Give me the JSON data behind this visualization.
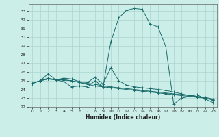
{
  "xlabel": "Humidex (Indice chaleur)",
  "background_color": "#cceee8",
  "grid_color": "#aad4ce",
  "line_color": "#1a6b6b",
  "xlim": [
    -0.5,
    23.5
  ],
  "ylim": [
    22,
    33.8
  ],
  "yticks": [
    22,
    23,
    24,
    25,
    26,
    27,
    28,
    29,
    30,
    31,
    32,
    33
  ],
  "xticks": [
    0,
    1,
    2,
    3,
    4,
    5,
    6,
    7,
    8,
    9,
    10,
    11,
    12,
    13,
    14,
    15,
    16,
    17,
    18,
    19,
    20,
    21,
    22,
    23
  ],
  "series": [
    [
      24.7,
      25.0,
      25.8,
      25.1,
      24.9,
      24.3,
      24.4,
      24.3,
      25.0,
      24.3,
      29.5,
      32.2,
      33.1,
      33.3,
      33.2,
      31.5,
      31.2,
      28.9,
      22.3,
      23.0,
      23.2,
      23.4,
      22.9,
      22.5
    ],
    [
      24.7,
      25.0,
      25.3,
      25.1,
      25.3,
      25.2,
      24.9,
      24.8,
      25.4,
      24.6,
      26.5,
      25.0,
      24.5,
      24.3,
      24.2,
      24.1,
      24.0,
      23.9,
      23.7,
      23.5,
      23.3,
      23.2,
      23.0,
      22.8
    ],
    [
      24.7,
      25.0,
      25.2,
      25.1,
      25.1,
      25.0,
      24.8,
      24.6,
      24.4,
      24.3,
      24.2,
      24.1,
      24.0,
      23.9,
      23.8,
      23.7,
      23.6,
      23.5,
      23.4,
      23.3,
      23.2,
      23.1,
      23.0,
      22.8
    ],
    [
      24.7,
      25.0,
      25.2,
      25.1,
      25.1,
      25.0,
      24.8,
      24.7,
      24.6,
      24.4,
      24.3,
      24.2,
      24.1,
      24.0,
      23.9,
      23.8,
      23.7,
      23.6,
      23.5,
      23.4,
      23.3,
      23.2,
      23.1,
      22.9
    ]
  ]
}
